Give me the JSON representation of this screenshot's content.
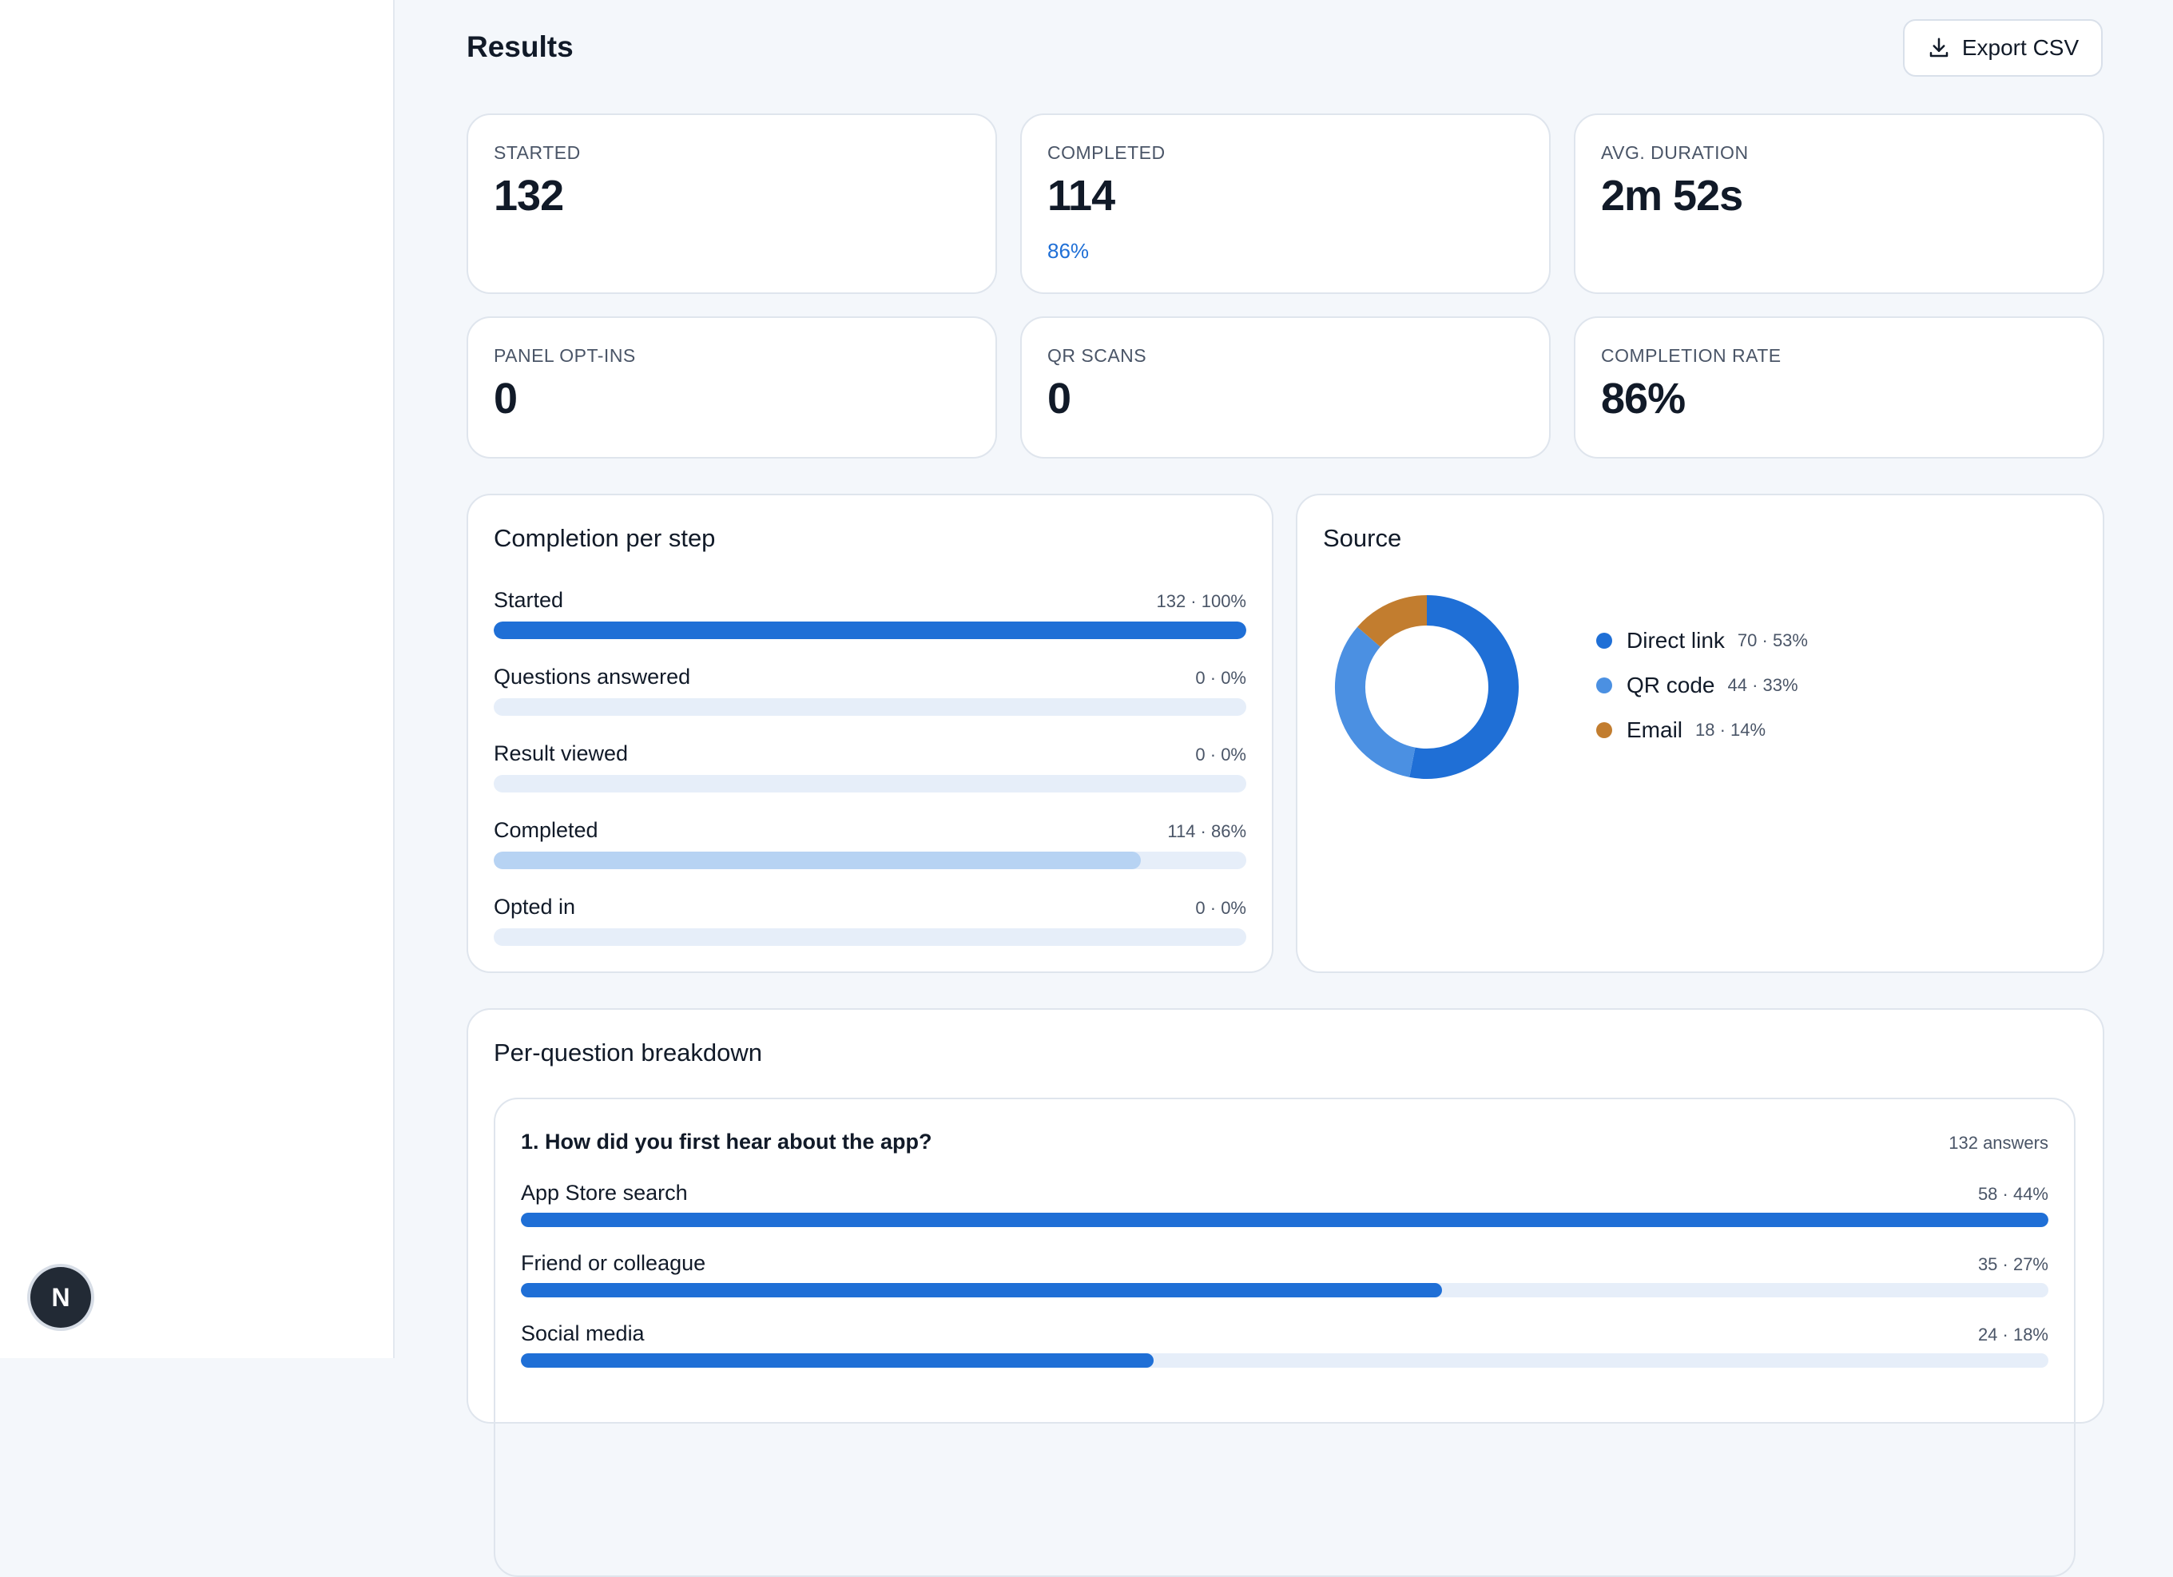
{
  "page": {
    "title": "Results",
    "export_label": "Export CSV"
  },
  "user": {
    "avatar_initial": "N"
  },
  "stats": [
    {
      "label": "STARTED",
      "value": "132",
      "sub": ""
    },
    {
      "label": "COMPLETED",
      "value": "114",
      "sub": "86%"
    },
    {
      "label": "AVG. DURATION",
      "value": "2m 52s",
      "sub": ""
    },
    {
      "label": "PANEL OPT-INS",
      "value": "0",
      "sub": ""
    },
    {
      "label": "QR SCANS",
      "value": "0",
      "sub": ""
    },
    {
      "label": "COMPLETION RATE",
      "value": "86%",
      "sub": ""
    }
  ],
  "completion": {
    "title": "Completion per step",
    "steps": [
      {
        "name": "Started",
        "meta": "132 · 100%",
        "pct": 100,
        "color": "#1f6fd6"
      },
      {
        "name": "Questions answered",
        "meta": "0 · 0%",
        "pct": 0,
        "color": "#1f6fd6"
      },
      {
        "name": "Result viewed",
        "meta": "0 · 0%",
        "pct": 0,
        "color": "#1f6fd6"
      },
      {
        "name": "Completed",
        "meta": "114 · 86%",
        "pct": 86,
        "color": "#b7d3f3"
      },
      {
        "name": "Opted in",
        "meta": "0 · 0%",
        "pct": 0,
        "color": "#1f6fd6"
      }
    ]
  },
  "source": {
    "title": "Source",
    "items": [
      {
        "name": "Direct link",
        "meta": "70 · 53%",
        "value": 70,
        "color": "#1f6fd6"
      },
      {
        "name": "QR code",
        "meta": "44 · 33%",
        "value": 44,
        "color": "#4b90e2"
      },
      {
        "name": "Email",
        "meta": "18 · 14%",
        "value": 18,
        "color": "#c27d2f"
      }
    ]
  },
  "breakdown": {
    "title": "Per-question breakdown",
    "question": {
      "title": "1. How did you first hear about the app?",
      "count": "132 answers",
      "options": [
        {
          "name": "App Store search",
          "meta": "58 · 44%",
          "pct": 100
        },
        {
          "name": "Friend or colleague",
          "meta": "35 · 27%",
          "pct": 60.3
        },
        {
          "name": "Social media",
          "meta": "24 · 18%",
          "pct": 41.4
        }
      ]
    }
  }
}
